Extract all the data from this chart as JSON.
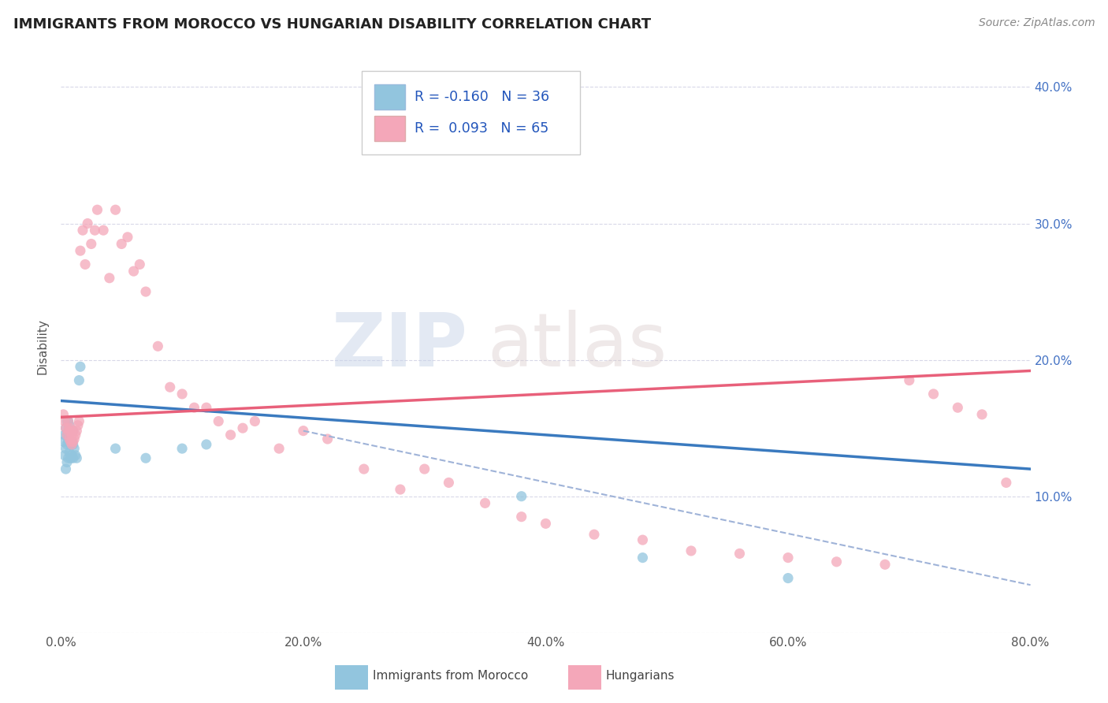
{
  "title": "IMMIGRANTS FROM MOROCCO VS HUNGARIAN DISABILITY CORRELATION CHART",
  "source": "Source: ZipAtlas.com",
  "ylabel": "Disability",
  "watermark": "ZIPatlas",
  "xlim": [
    0.0,
    0.8
  ],
  "ylim": [
    0.0,
    0.42
  ],
  "x_ticks": [
    0.0,
    0.2,
    0.4,
    0.6,
    0.8
  ],
  "x_tick_labels": [
    "0.0%",
    "20.0%",
    "40.0%",
    "60.0%",
    "80.0%"
  ],
  "y_ticks": [
    0.0,
    0.1,
    0.2,
    0.3,
    0.4
  ],
  "y_tick_labels_right": [
    "",
    "10.0%",
    "20.0%",
    "30.0%",
    "40.0%"
  ],
  "blue_dot_color": "#92c5de",
  "pink_dot_color": "#f4a7b9",
  "blue_line_color": "#3a7abf",
  "pink_line_color": "#e8607a",
  "dashed_line_color": "#9fb3d8",
  "label1": "Immigrants from Morocco",
  "label2": "Hungarians",
  "blue_scatter_x": [
    0.002,
    0.003,
    0.003,
    0.004,
    0.004,
    0.004,
    0.005,
    0.005,
    0.005,
    0.005,
    0.006,
    0.006,
    0.006,
    0.007,
    0.007,
    0.007,
    0.008,
    0.008,
    0.008,
    0.009,
    0.009,
    0.01,
    0.01,
    0.01,
    0.011,
    0.012,
    0.013,
    0.015,
    0.016,
    0.045,
    0.07,
    0.1,
    0.12,
    0.38,
    0.48,
    0.6
  ],
  "blue_scatter_y": [
    0.14,
    0.13,
    0.145,
    0.12,
    0.135,
    0.15,
    0.125,
    0.138,
    0.145,
    0.155,
    0.128,
    0.14,
    0.155,
    0.132,
    0.142,
    0.152,
    0.128,
    0.138,
    0.148,
    0.13,
    0.14,
    0.128,
    0.138,
    0.148,
    0.135,
    0.13,
    0.128,
    0.185,
    0.195,
    0.135,
    0.128,
    0.135,
    0.138,
    0.1,
    0.055,
    0.04
  ],
  "pink_scatter_x": [
    0.002,
    0.003,
    0.004,
    0.005,
    0.006,
    0.006,
    0.007,
    0.007,
    0.008,
    0.008,
    0.009,
    0.009,
    0.01,
    0.01,
    0.011,
    0.012,
    0.013,
    0.014,
    0.015,
    0.016,
    0.018,
    0.02,
    0.022,
    0.025,
    0.028,
    0.03,
    0.035,
    0.04,
    0.045,
    0.05,
    0.055,
    0.06,
    0.065,
    0.07,
    0.08,
    0.09,
    0.1,
    0.11,
    0.12,
    0.13,
    0.14,
    0.15,
    0.16,
    0.18,
    0.2,
    0.22,
    0.25,
    0.28,
    0.3,
    0.32,
    0.35,
    0.38,
    0.4,
    0.44,
    0.48,
    0.52,
    0.56,
    0.6,
    0.64,
    0.68,
    0.7,
    0.72,
    0.74,
    0.76,
    0.78
  ],
  "pink_scatter_y": [
    0.16,
    0.155,
    0.15,
    0.145,
    0.148,
    0.155,
    0.142,
    0.15,
    0.14,
    0.148,
    0.138,
    0.145,
    0.14,
    0.148,
    0.142,
    0.145,
    0.148,
    0.152,
    0.155,
    0.28,
    0.295,
    0.27,
    0.3,
    0.285,
    0.295,
    0.31,
    0.295,
    0.26,
    0.31,
    0.285,
    0.29,
    0.265,
    0.27,
    0.25,
    0.21,
    0.18,
    0.175,
    0.165,
    0.165,
    0.155,
    0.145,
    0.15,
    0.155,
    0.135,
    0.148,
    0.142,
    0.12,
    0.105,
    0.12,
    0.11,
    0.095,
    0.085,
    0.08,
    0.072,
    0.068,
    0.06,
    0.058,
    0.055,
    0.052,
    0.05,
    0.185,
    0.175,
    0.165,
    0.16,
    0.11
  ],
  "blue_trend_x": [
    0.0,
    0.8
  ],
  "blue_trend_y": [
    0.17,
    0.12
  ],
  "pink_trend_x": [
    0.0,
    0.8
  ],
  "pink_trend_y": [
    0.158,
    0.192
  ],
  "dashed_trend_x": [
    0.2,
    0.8
  ],
  "dashed_trend_y": [
    0.148,
    0.035
  ],
  "background_color": "#ffffff",
  "grid_color": "#d8d8e8",
  "grid_style_top": "--"
}
